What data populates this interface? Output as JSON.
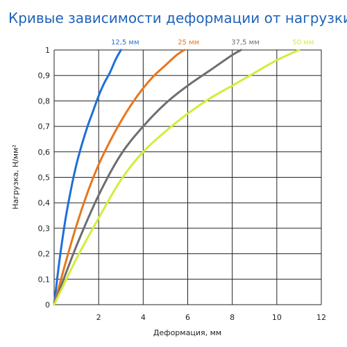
{
  "chart_data": {
    "type": "line",
    "title": "Кривые зависимости деформации от нагрузки",
    "xlabel": "Деформация, мм",
    "ylabel": "Нагрузка, Н/мм²",
    "xlim": [
      0,
      12
    ],
    "ylim": [
      0,
      1
    ],
    "x_ticks": [
      2,
      4,
      6,
      8,
      10,
      12
    ],
    "x_tick_labels": [
      "2",
      "4",
      "6",
      "8",
      "10",
      "12"
    ],
    "y_ticks": [
      0,
      0.1,
      0.2,
      0.3,
      0.4,
      0.5,
      0.6,
      0.7,
      0.8,
      0.9,
      1
    ],
    "y_tick_labels": [
      "0",
      "0,1",
      "0,2",
      "0,3",
      "0,4",
      "0,5",
      "0,6",
      "0,7",
      "0,8",
      "0,9",
      "1"
    ],
    "grid": true,
    "legend": "series labels at top of each curve",
    "series": [
      {
        "name": "12,5 мм",
        "color": "#1e6fd9",
        "x": [
          0,
          0.25,
          0.5,
          0.75,
          1.0,
          1.25,
          1.5,
          1.75,
          2.0,
          2.25,
          2.5,
          2.75,
          3.0
        ],
        "y": [
          0,
          0.18,
          0.33,
          0.45,
          0.55,
          0.63,
          0.7,
          0.76,
          0.82,
          0.87,
          0.91,
          0.96,
          1.0
        ]
      },
      {
        "name": "25 мм",
        "color": "#e8761e",
        "x": [
          0,
          0.5,
          1.0,
          1.5,
          2.0,
          2.5,
          3.0,
          3.5,
          4.0,
          4.5,
          5.0,
          5.5,
          5.85
        ],
        "y": [
          0,
          0.16,
          0.31,
          0.44,
          0.55,
          0.64,
          0.72,
          0.79,
          0.85,
          0.9,
          0.94,
          0.98,
          1.0
        ]
      },
      {
        "name": "37,5 мм",
        "color": "#6e6e6e",
        "x": [
          0,
          1.0,
          2.0,
          3.0,
          4.0,
          5.0,
          6.0,
          7.0,
          8.0,
          8.4
        ],
        "y": [
          0,
          0.23,
          0.43,
          0.59,
          0.7,
          0.79,
          0.86,
          0.92,
          0.98,
          1.0
        ]
      },
      {
        "name": "50 мм",
        "color": "#d4ec3a",
        "x": [
          0,
          1.0,
          2.0,
          3.0,
          4.0,
          5.0,
          6.0,
          7.0,
          8.0,
          9.0,
          10.0,
          11.0
        ],
        "y": [
          0,
          0.18,
          0.34,
          0.49,
          0.6,
          0.68,
          0.75,
          0.81,
          0.86,
          0.91,
          0.96,
          1.0
        ]
      }
    ]
  }
}
